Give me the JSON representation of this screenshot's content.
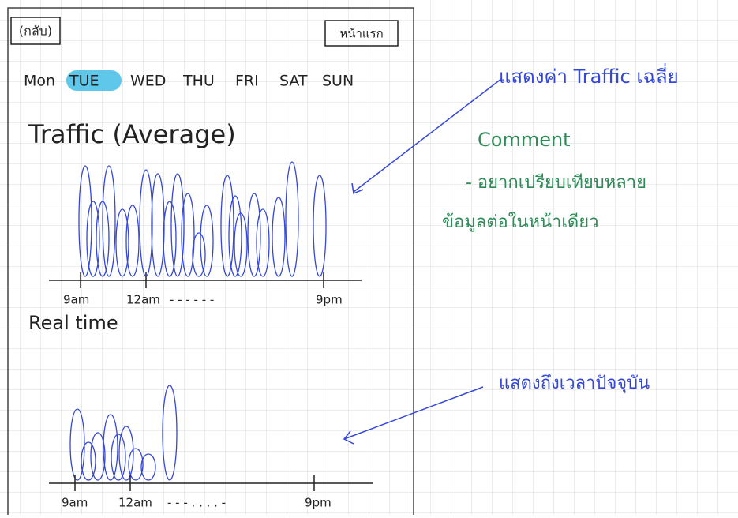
{
  "header": {
    "back": "(กลับ)",
    "home": "หน้าแรก"
  },
  "days": [
    "Mon",
    "TUE",
    "WED",
    "THU",
    "FRI",
    "SAT",
    "SUN"
  ],
  "selected_day": 1,
  "traffic": {
    "title": "Traffic (Average)",
    "axis_labels": [
      "9am",
      "12am",
      "- - - - - -",
      "9pm"
    ]
  },
  "realtime": {
    "title": "Real time",
    "axis_labels": [
      "9am",
      "12am",
      "- - - . . . . -",
      "9pm"
    ]
  },
  "annotations": {
    "traffic_note": "แสดงค่า Traffic เฉลี่ย",
    "comment_title": "Comment",
    "comment_lines": [
      "- อยากเปรียบเทียบหลาย",
      "ข้อมูลต่อในหน้าเดียว"
    ],
    "realtime_note": "แสดงถึงเวลาปัจจุบัน"
  }
}
